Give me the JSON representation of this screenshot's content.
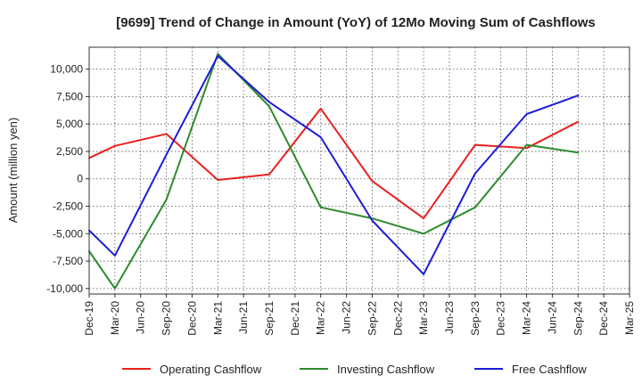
{
  "chart_data": {
    "type": "line",
    "title": "[9699]  Trend of Change in Amount (YoY) of 12Mo Moving Sum of Cashflows",
    "xlabel": "",
    "ylabel": "Amount (million yen)",
    "categories": [
      "Dec-19",
      "Mar-20",
      "Jun-20",
      "Sep-20",
      "Dec-20",
      "Mar-21",
      "Jun-21",
      "Sep-21",
      "Dec-21",
      "Mar-22",
      "Jun-22",
      "Sep-22",
      "Dec-22",
      "Mar-23",
      "Jun-23",
      "Sep-23",
      "Dec-23",
      "Mar-24",
      "Jun-24",
      "Sep-24",
      "Dec-24",
      "Mar-25"
    ],
    "ylim": [
      -10500,
      12000
    ],
    "yticks": [
      -10000,
      -7500,
      -5000,
      -2500,
      0,
      2500,
      5000,
      7500,
      10000
    ],
    "ytick_labels": [
      "-10,000",
      "-7,500",
      "-5,000",
      "-2,500",
      "0",
      "2,500",
      "5,000",
      "7,500",
      "10,000"
    ],
    "grid": true,
    "legend_position": "bottom",
    "series": [
      {
        "name": "Operating Cashflow",
        "color": "#e8201e",
        "x": [
          "Dec-19",
          "Mar-20",
          "Sep-20",
          "Mar-21",
          "Sep-21",
          "Mar-22",
          "Sep-22",
          "Mar-23",
          "Sep-23",
          "Mar-24",
          "Sep-24"
        ],
        "values": [
          1900,
          3000,
          4100,
          -100,
          400,
          6400,
          -200,
          -3600,
          3100,
          2800,
          5200
        ]
      },
      {
        "name": "Investing Cashflow",
        "color": "#2e8b2e",
        "x": [
          "Dec-19",
          "Mar-20",
          "Sep-20",
          "Mar-21",
          "Sep-21",
          "Mar-22",
          "Sep-22",
          "Mar-23",
          "Sep-23",
          "Mar-24",
          "Sep-24"
        ],
        "values": [
          -6600,
          -10000,
          -1900,
          11400,
          6600,
          -2600,
          -3600,
          -5000,
          -2600,
          3100,
          2400
        ]
      },
      {
        "name": "Free Cashflow",
        "color": "#1c1cd8",
        "x": [
          "Dec-19",
          "Mar-20",
          "Sep-20",
          "Mar-21",
          "Sep-21",
          "Mar-22",
          "Sep-22",
          "Mar-23",
          "Sep-23",
          "Mar-24",
          "Sep-24"
        ],
        "values": [
          -4700,
          -7000,
          2200,
          11200,
          7000,
          3800,
          -3800,
          -8700,
          500,
          5900,
          7600
        ]
      }
    ]
  }
}
